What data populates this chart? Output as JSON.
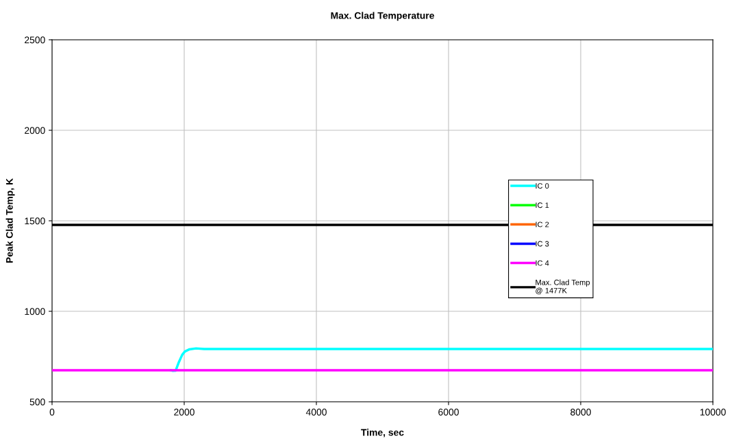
{
  "chart_data": {
    "type": "line",
    "title": "Max. Clad Temperature",
    "xlabel": "Time, sec",
    "ylabel": "Peak Clad Temp, K",
    "xlim": [
      0,
      10000
    ],
    "xticks": [
      0,
      2000,
      4000,
      6000,
      8000,
      10000
    ],
    "ylim": [
      500,
      2500
    ],
    "yticks": [
      500,
      1000,
      1500,
      2000,
      2500
    ],
    "grid": true,
    "legend": "center right",
    "marker": "none",
    "line_style": "solid",
    "series": [
      {
        "name": "IC 0",
        "color": "#00ffff",
        "x": [
          1800,
          1830,
          1870,
          1920,
          1970,
          2010,
          2080,
          2180,
          2300,
          10000
        ],
        "values": [
          674,
          671,
          672,
          720,
          760,
          778,
          790,
          795,
          792,
          792
        ]
      },
      {
        "name": "IC 1",
        "color": "#00ff00"
      },
      {
        "name": "IC 2",
        "color": "#ff6600"
      },
      {
        "name": "IC 3",
        "color": "#0000ff"
      },
      {
        "name": "IC 4",
        "color": "#ff00ff",
        "x": [
          0,
          10000
        ],
        "values": [
          674,
          674
        ]
      }
    ],
    "ref_lines": [
      {
        "axis": "y",
        "value": 1477,
        "label": "Max. Clad Temp\n@ 1477K",
        "color": "#000000",
        "line_style": "solid"
      }
    ]
  }
}
